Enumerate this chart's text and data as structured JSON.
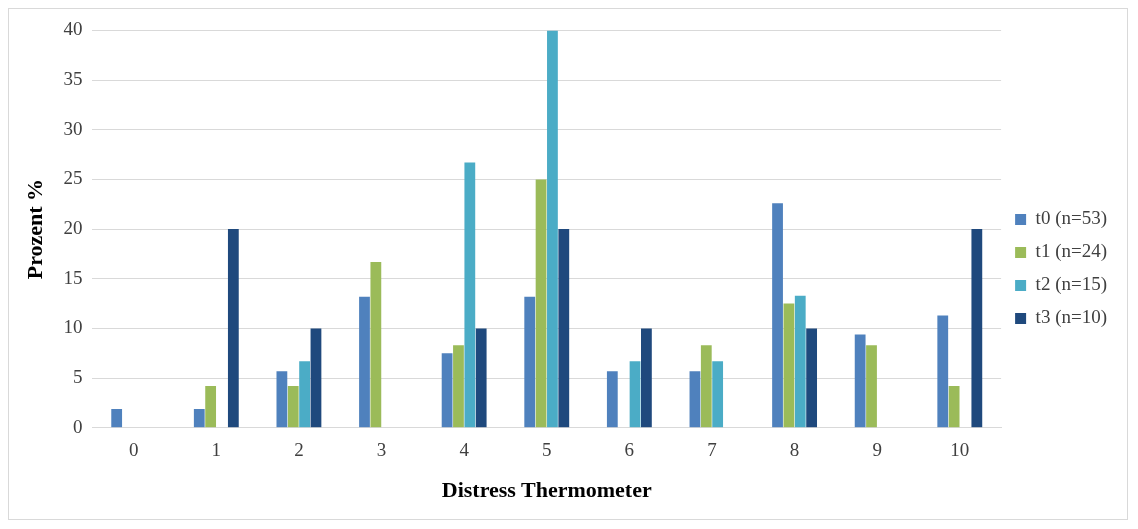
{
  "chart_data": {
    "type": "bar",
    "xlabel": "Distress Thermometer",
    "ylabel": "Prozent %",
    "categories": [
      "0",
      "1",
      "2",
      "3",
      "4",
      "5",
      "6",
      "7",
      "8",
      "9",
      "10"
    ],
    "series": [
      {
        "name": "t0 (n=53)",
        "color": "#4f81bd",
        "values": [
          1.9,
          1.9,
          5.7,
          13.2,
          7.5,
          13.2,
          5.7,
          5.7,
          22.6,
          9.4,
          11.3
        ]
      },
      {
        "name": "t1 (n=24)",
        "color": "#9bbb59",
        "values": [
          0,
          4.2,
          4.2,
          16.7,
          8.3,
          25,
          0,
          8.3,
          12.5,
          8.3,
          4.2
        ]
      },
      {
        "name": "t2 (n=15)",
        "color": "#4bacc6",
        "values": [
          0,
          0,
          6.7,
          0,
          26.7,
          40,
          6.7,
          6.7,
          13.3,
          0,
          0
        ]
      },
      {
        "name": "t3 (n=10)",
        "color": "#1f497d",
        "values": [
          0,
          20,
          10,
          0,
          10,
          20,
          10,
          0,
          10,
          0,
          20
        ]
      }
    ],
    "ylim": [
      0,
      40
    ],
    "yticks": [
      0,
      5,
      10,
      15,
      20,
      25,
      30,
      35,
      40
    ],
    "grid": "y",
    "legend": "right"
  }
}
